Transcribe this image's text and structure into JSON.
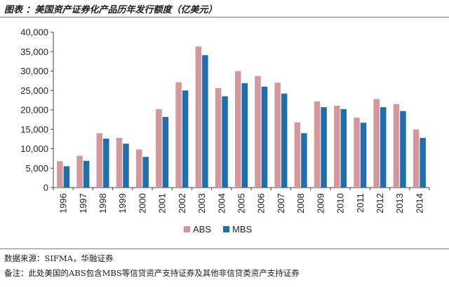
{
  "title": "图表 ：美国资产证券化产品历年发行额度（亿美元）",
  "source": "数据来源：SIFMA，华融证券",
  "remark": "备注：此处美国的ABS包含MBS等信贷资产支持证券及其他非信贷类资产支持证券",
  "chart_data": {
    "type": "bar",
    "categories": [
      "1996",
      "1997",
      "1998",
      "1999",
      "2000",
      "2001",
      "2002",
      "2003",
      "2004",
      "2005",
      "2006",
      "2007",
      "2008",
      "2009",
      "2010",
      "2011",
      "2012",
      "2013",
      "2014"
    ],
    "series": [
      {
        "name": "ABS",
        "color": "#d4979b",
        "values": [
          6800,
          8200,
          14000,
          12800,
          9800,
          20200,
          27100,
          36300,
          25600,
          30000,
          28700,
          27000,
          16800,
          22200,
          21100,
          18000,
          22800,
          21500,
          15000
        ]
      },
      {
        "name": "MBS",
        "color": "#1f6fae",
        "values": [
          5500,
          6900,
          12600,
          11300,
          7900,
          18200,
          25000,
          34100,
          23500,
          26900,
          26000,
          24200,
          14000,
          20700,
          20200,
          16700,
          20700,
          19700,
          12800
        ]
      }
    ],
    "y_ticks": [
      "0",
      "5,000",
      "10,000",
      "15,000",
      "20,000",
      "25,000",
      "30,000",
      "35,000",
      "40,000"
    ],
    "ylim": [
      0,
      40000
    ],
    "ystep": 5000,
    "legend_position": "bottom-center",
    "grid": false
  }
}
